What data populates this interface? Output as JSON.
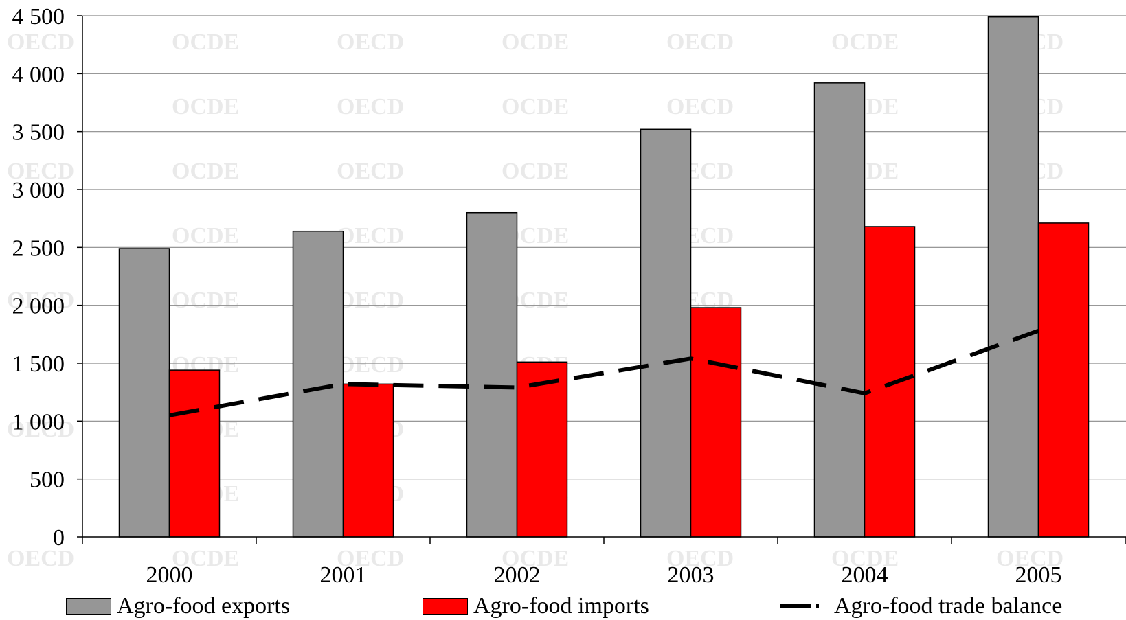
{
  "chart_data": {
    "type": "bar",
    "categories": [
      "2000",
      "2001",
      "2002",
      "2003",
      "2004",
      "2005"
    ],
    "series": [
      {
        "name": "Agro-food exports",
        "type": "bar",
        "color": "#969696",
        "values": [
          2490,
          2640,
          2800,
          3520,
          3920,
          4490
        ]
      },
      {
        "name": "Agro-food imports",
        "type": "bar",
        "color": "#ff0000",
        "values": [
          1440,
          1320,
          1510,
          1980,
          2680,
          2710
        ]
      },
      {
        "name": "Agro-food trade balance",
        "type": "line",
        "style": "dashed",
        "color": "#000000",
        "values": [
          1050,
          1320,
          1290,
          1540,
          1240,
          1780
        ]
      }
    ],
    "ylim": [
      0,
      4500
    ],
    "yticks": [
      0,
      500,
      1000,
      1500,
      2000,
      2500,
      3000,
      3500,
      4000,
      4500
    ],
    "ytick_labels": [
      "0",
      "500",
      "1 000",
      "1 500",
      "2 000",
      "2 500",
      "3 000",
      "3 500",
      "4 000",
      "4 500"
    ],
    "grid": true,
    "legend_position": "bottom",
    "watermark": [
      "OECD",
      "OCDE"
    ]
  }
}
